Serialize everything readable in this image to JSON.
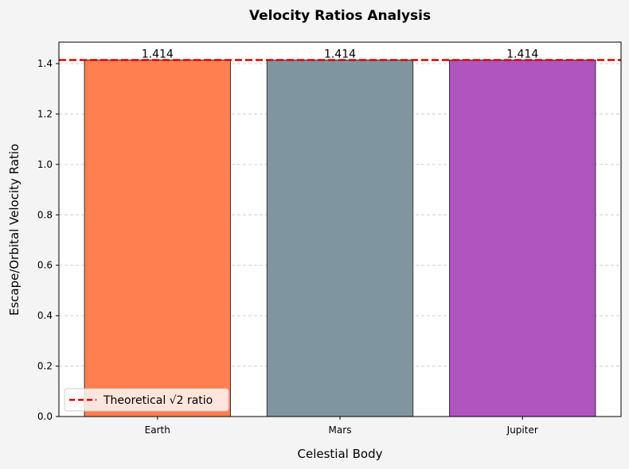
{
  "chart_data": {
    "type": "bar",
    "title": "Velocity Ratios Analysis",
    "xlabel": "Celestial Body",
    "ylabel": "Escape/Orbital Velocity Ratio",
    "categories": [
      "Earth",
      "Mars",
      "Jupiter"
    ],
    "values": [
      1.414,
      1.414,
      1.414
    ],
    "value_labels": [
      "1.414",
      "1.414",
      "1.414"
    ],
    "bar_colors": [
      "#ff7f50",
      "#7f96a0",
      "#b054c0"
    ],
    "ylim": [
      0,
      1.485
    ],
    "yticks": [
      0.0,
      0.2,
      0.4,
      0.6,
      0.8,
      1.0,
      1.2,
      1.4
    ],
    "ytick_labels": [
      "0.0",
      "0.2",
      "0.4",
      "0.6",
      "0.8",
      "1.0",
      "1.2",
      "1.4"
    ],
    "reference_line": {
      "value": 1.414,
      "label": "Theoretical √2 ratio",
      "color": "#e00000",
      "style": "dashed"
    },
    "grid": {
      "y": true,
      "x": false,
      "style": "dashed"
    },
    "legend": {
      "placement": "lower-left",
      "entries": [
        "Theoretical √2 ratio"
      ]
    },
    "colors": {
      "figure_bg": "#f4f4f4",
      "plot_bg": "#ffffff",
      "bar_edge": "#333333",
      "grid": "#d0d0d0"
    }
  }
}
